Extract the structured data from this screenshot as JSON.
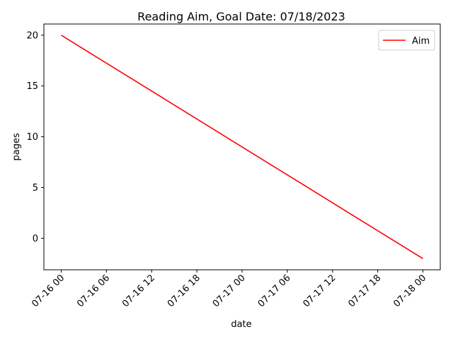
{
  "chart_data": {
    "type": "line",
    "title": "Reading Aim, Goal Date: 07/18/2023",
    "xlabel": "date",
    "ylabel": "pages",
    "x_ticks": [
      "07-16 00",
      "07-16 06",
      "07-16 12",
      "07-16 18",
      "07-17 00",
      "07-17 06",
      "07-17 12",
      "07-17 18",
      "07-18 00"
    ],
    "y_ticks": [
      "0",
      "5",
      "10",
      "15",
      "20"
    ],
    "ylim": [
      -3.1,
      21.1
    ],
    "xlim": [
      "07-15 21:42",
      "07-18 02:18"
    ],
    "grid": false,
    "legend_position": "top-right",
    "series": [
      {
        "name": "Aim",
        "color": "#ff0000",
        "x": [
          "07-16 00",
          "07-18 00"
        ],
        "y": [
          20,
          -2
        ]
      }
    ]
  }
}
